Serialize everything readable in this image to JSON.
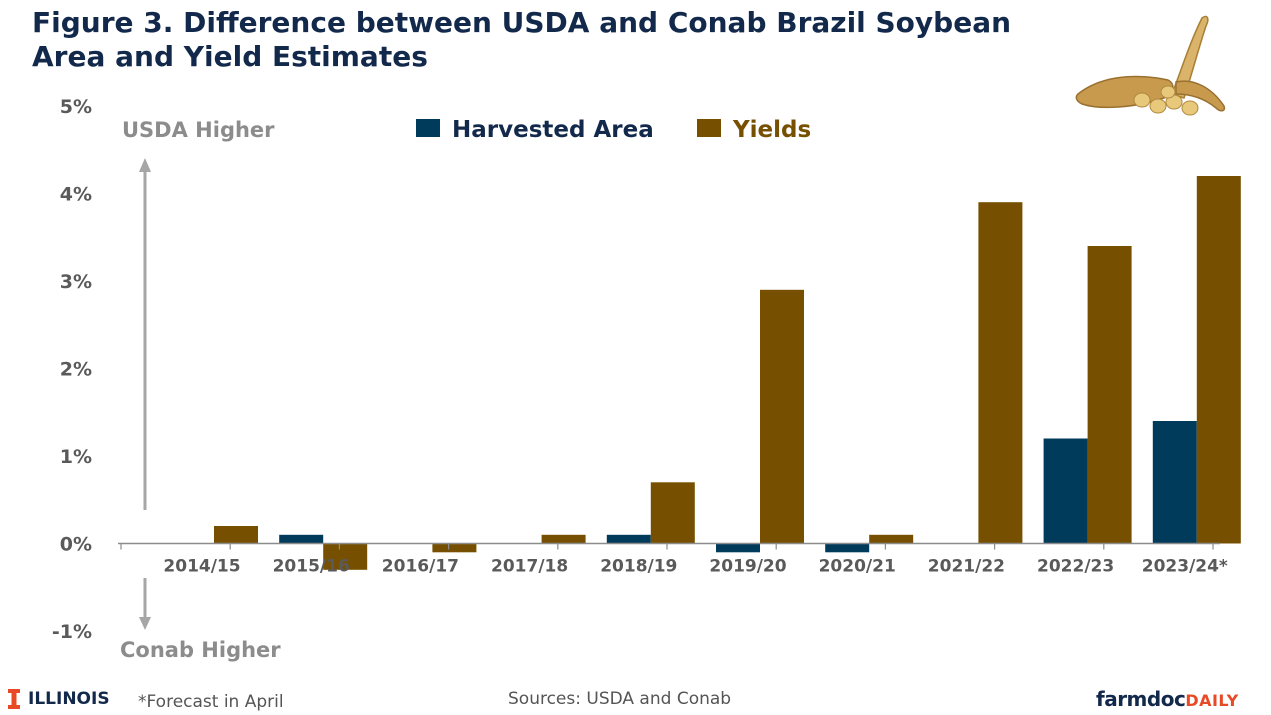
{
  "title": "Figure 3. Difference between USDA and Conab Brazil Soybean Area and Yield Estimates",
  "footnote": "*Forecast in April",
  "sources": "Sources: USDA and Conab",
  "branding": {
    "illinois": "ILLINOIS",
    "farmdoc": "farmdoc",
    "daily": "DAILY",
    "illinois_color": "#E84A27",
    "logo_image": "soybean-pods"
  },
  "annotations": {
    "usda_higher": "USDA Higher",
    "conab_higher": "Conab Higher"
  },
  "colors": {
    "title": "#13294B",
    "harvested_area": "#003B5C",
    "yields": "#765000",
    "annotation": "#8C8C8C",
    "axis_text": "#5A5A5A"
  },
  "chart_data": {
    "type": "bar",
    "categories": [
      "2014/15",
      "2015/16",
      "2016/17",
      "2017/18",
      "2018/19",
      "2019/20",
      "2020/21",
      "2021/22",
      "2022/23",
      "2023/24*"
    ],
    "series": [
      {
        "name": "Harvested Area",
        "values": [
          0.0,
          0.1,
          0.0,
          0.0,
          0.1,
          -0.1,
          -0.1,
          0.0,
          1.2,
          1.4
        ]
      },
      {
        "name": "Yields",
        "values": [
          0.2,
          -0.3,
          -0.1,
          0.1,
          0.7,
          2.9,
          0.1,
          3.9,
          3.4,
          4.2
        ]
      }
    ],
    "ylim": [
      -1,
      5
    ],
    "yticks": [
      "-1%",
      "0%",
      "1%",
      "2%",
      "3%",
      "4%",
      "5%"
    ],
    "y_unit": "%",
    "grid": false,
    "legend_position": "top-center"
  }
}
